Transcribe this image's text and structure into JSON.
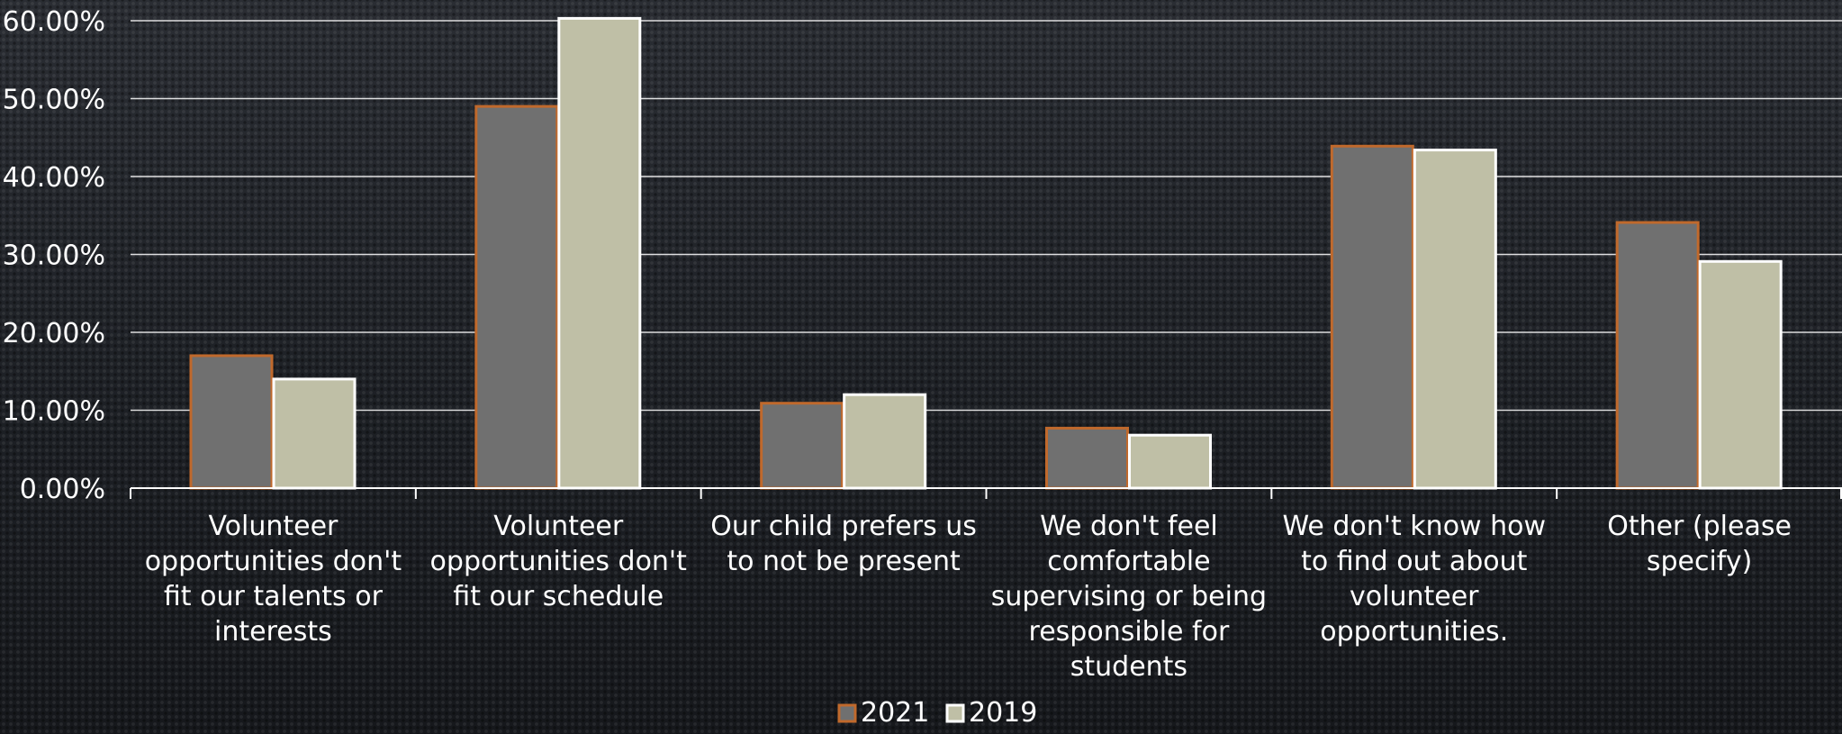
{
  "chart_data": {
    "type": "bar",
    "categories": [
      "Volunteer opportunities don't fit our talents or interests",
      "Volunteer opportunities don't fit our schedule",
      "Our child prefers us to not be present",
      "We don't feel comfortable supervising or being responsible for students",
      "We don't know how to find out about volunteer opportunities.",
      "Other (please specify)"
    ],
    "category_lines": [
      [
        "Volunteer",
        "opportunities don't",
        "fit our talents or",
        "interests"
      ],
      [
        "Volunteer",
        "opportunities don't",
        "fit our schedule"
      ],
      [
        "Our child prefers us",
        "to not be present"
      ],
      [
        "We don't feel",
        "comfortable",
        "supervising or being",
        "responsible for",
        "students"
      ],
      [
        "We don't know how",
        "to find out about",
        "volunteer",
        "opportunities."
      ],
      [
        "Other (please",
        "specify)"
      ]
    ],
    "series": [
      {
        "name": "2021",
        "values": [
          17.0,
          49.0,
          10.9,
          7.7,
          43.9,
          34.1
        ],
        "fill": "#707070",
        "stroke": "#c0692c"
      },
      {
        "name": "2019",
        "values": [
          14.0,
          60.3,
          12.0,
          6.8,
          43.4,
          29.1
        ],
        "fill": "#bfbfa6",
        "stroke": "#ffffff"
      }
    ],
    "y_ticks": [
      "0.00%",
      "10.00%",
      "20.00%",
      "30.00%",
      "40.00%",
      "50.00%",
      "60.00%"
    ],
    "ylim": [
      0,
      60
    ],
    "grid": true,
    "legend_position": "bottom",
    "colors": {
      "gridline": "#ffffff",
      "text": "#ffffff"
    }
  }
}
